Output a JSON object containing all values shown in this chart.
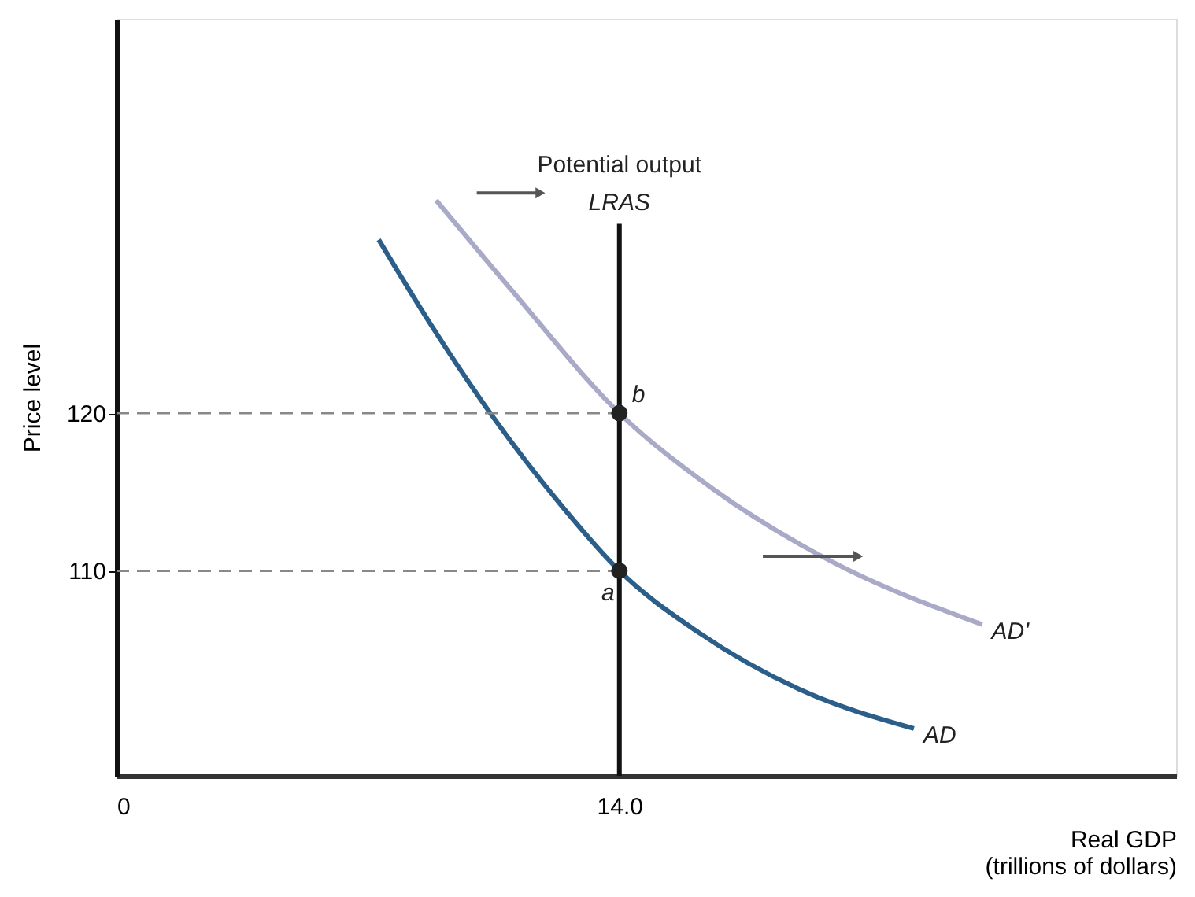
{
  "chart_data": {
    "type": "line",
    "xlabel": "Real GDP\n(trillions of dollars)",
    "ylabel": "Price level",
    "xlim": [
      0,
      29.5
    ],
    "xticks": [
      0,
      {
        "value": 14,
        "label": "14.0"
      }
    ],
    "ylim": [
      97,
      145
    ],
    "yticks": [
      110,
      120
    ],
    "grid": false,
    "line_style": "solid",
    "marker": "none",
    "series": [
      {
        "name": "AD",
        "color": "#2b5f8a",
        "x": [
          7.3,
          8.7,
          10.5,
          12.4,
          14.0,
          16.2,
          19.0,
          22.2
        ],
        "values": [
          131,
          125.8,
          119.7,
          114.1,
          110,
          106.1,
          102.5,
          100
        ]
      },
      {
        "name": "AD'",
        "color": "#a9a9c8",
        "x": [
          8.9,
          11.0,
          14.0,
          16.6,
          19.9,
          24.1
        ],
        "values": [
          133.5,
          127.8,
          120,
          115.2,
          110.6,
          106.6
        ]
      },
      {
        "name": "LRAS",
        "color": "#111111",
        "x": [
          14,
          14
        ],
        "values": [
          97,
          132
        ]
      },
      {
        "type": "line",
        "line_style": "dashed",
        "color": "#888888",
        "x": [
          0,
          14
        ],
        "values": [
          120,
          120
        ]
      },
      {
        "type": "line",
        "line_style": "dashed",
        "color": "#888888",
        "x": [
          0,
          14
        ],
        "values": [
          110,
          110
        ]
      },
      {
        "type": "scatter",
        "marker": "circle",
        "color": "#222222",
        "x": [
          14,
          14
        ],
        "values": [
          110,
          120
        ]
      }
    ],
    "annotations": [
      "Potential output",
      {
        "text": "a",
        "x": 14,
        "y": 110
      },
      {
        "text": "b",
        "x": 14,
        "y": 120
      }
    ]
  }
}
